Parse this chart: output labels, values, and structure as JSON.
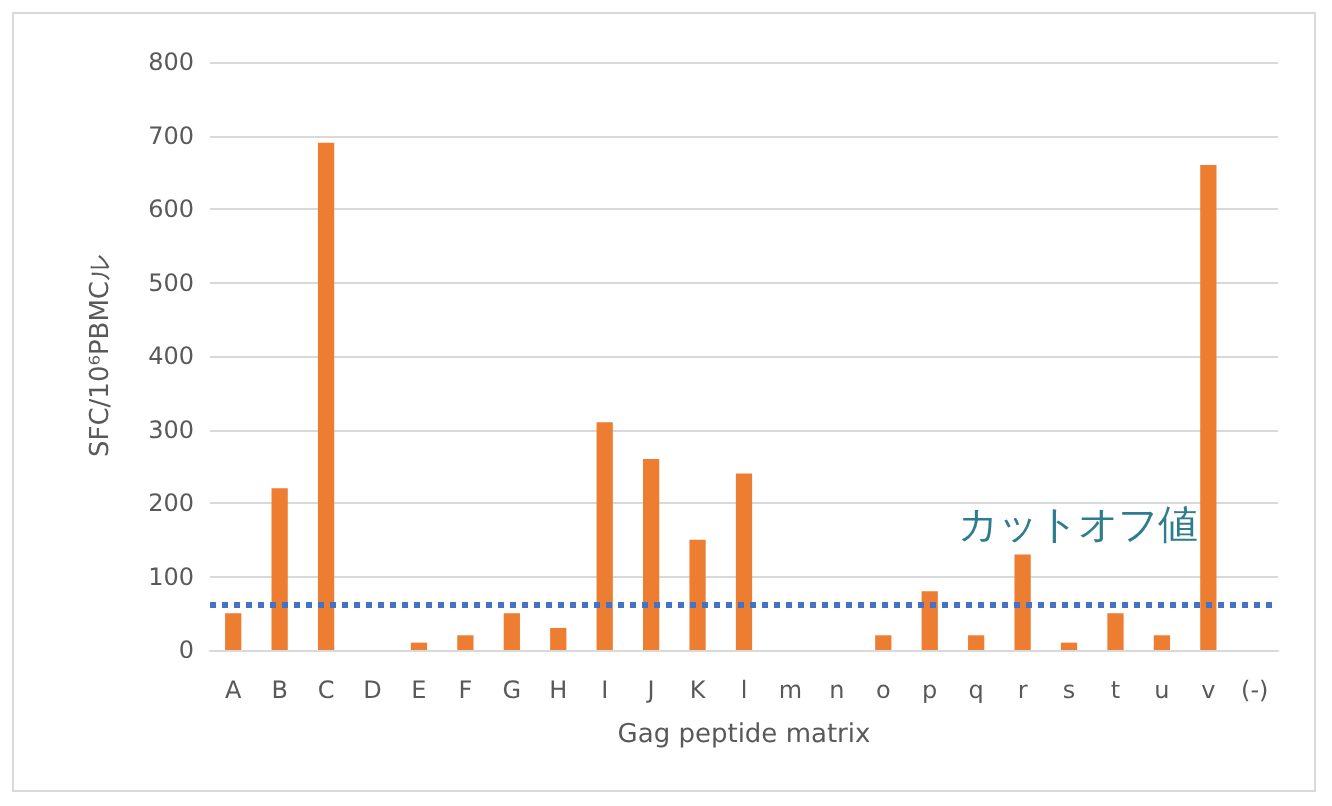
{
  "chart_data": {
    "type": "bar",
    "xlabel": "Gag peptide matrix",
    "ylabel": "SFC/10⁶PBMCル",
    "categories": [
      "A",
      "B",
      "C",
      "D",
      "E",
      "F",
      "G",
      "H",
      "I",
      "J",
      "K",
      "l",
      "m",
      "n",
      "o",
      "p",
      "q",
      "r",
      "s",
      "t",
      "u",
      "v",
      "(-)"
    ],
    "values": [
      50,
      220,
      690,
      0,
      10,
      20,
      50,
      30,
      310,
      260,
      150,
      240,
      0,
      0,
      20,
      80,
      20,
      130,
      10,
      50,
      20,
      660,
      0
    ],
    "color": "#ed7d31",
    "ylim": [
      0,
      800
    ],
    "yticks": [
      0,
      100,
      200,
      300,
      400,
      500,
      600,
      700,
      800
    ],
    "grid": "y",
    "ref_lines": [
      {
        "axis": "y",
        "value": 62,
        "label": "カットオフ値",
        "color": "#4472c4",
        "line_style": "dotted"
      }
    ]
  }
}
